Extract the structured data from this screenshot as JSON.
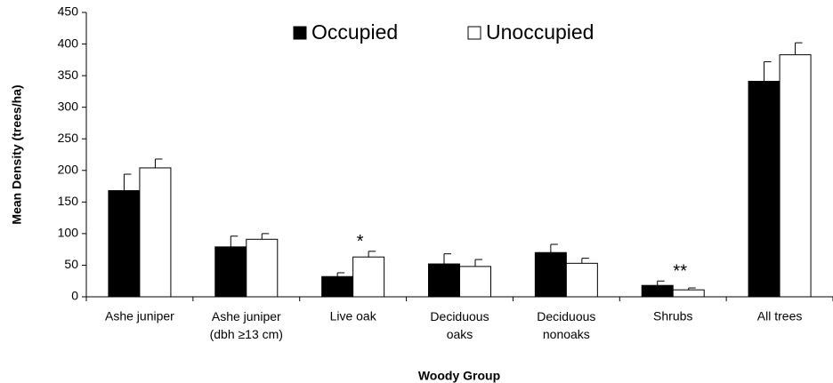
{
  "chart_data": {
    "type": "bar",
    "y_label": "Mean Density (trees/ha)",
    "x_label": "Woody Group",
    "categories": [
      "Ashe juniper",
      "Ashe juniper\n(dbh ≥13 cm)",
      "Live oak",
      "Deciduous\noaks",
      "Deciduous\nnonoaks",
      "Shrubs",
      "All trees"
    ],
    "series": [
      {
        "name": "Occupied",
        "color": "#000000",
        "values": [
          168,
          79,
          32,
          52,
          70,
          18,
          341
        ],
        "errors": [
          26,
          17,
          6,
          16,
          13,
          7,
          31
        ]
      },
      {
        "name": "Unoccupied",
        "color": "#ffffff",
        "values": [
          204,
          91,
          63,
          48,
          53,
          11,
          383
        ],
        "errors": [
          14,
          9,
          9,
          11,
          8,
          3,
          19
        ]
      }
    ],
    "annotations": [
      null,
      null,
      "*",
      null,
      null,
      "**",
      null
    ],
    "ylim": [
      0,
      450
    ],
    "yticks": [
      0,
      50,
      100,
      150,
      200,
      250,
      300,
      350,
      400,
      450
    ],
    "grid": false,
    "legend": "top"
  }
}
